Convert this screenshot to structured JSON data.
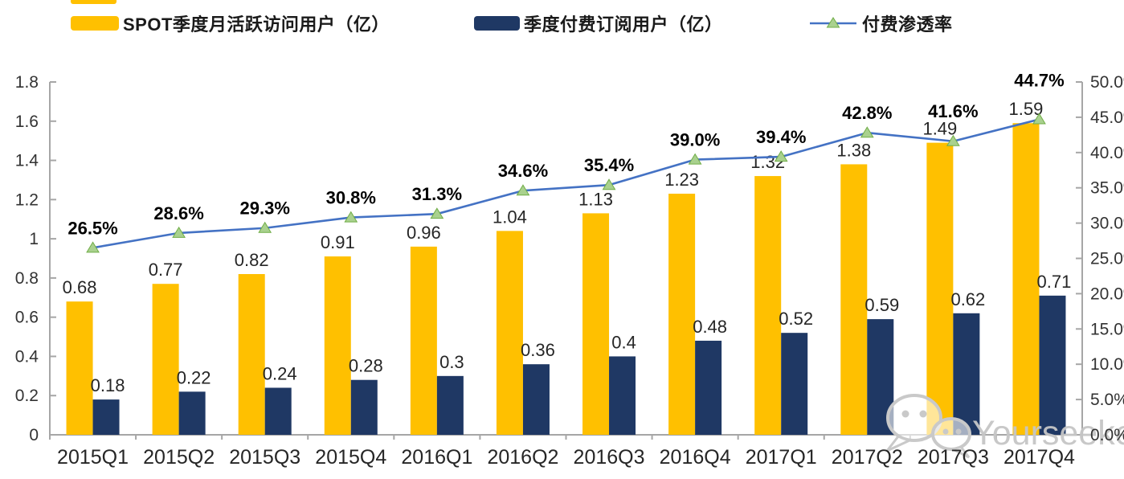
{
  "legend": {
    "items": [
      {
        "label": "SPOT季度月活跃访问用户（亿）",
        "marker": "swatch",
        "color": "#FFC000"
      },
      {
        "label": "季度付费订阅用户（亿）",
        "marker": "swatch",
        "color": "#1F3864"
      },
      {
        "label": "付费渗透率",
        "marker": "line-triangle",
        "color": "#4472C4"
      }
    ]
  },
  "watermark": {
    "text": "Yourseeker",
    "icon": "wechat-bubbles-icon",
    "color": "#c6c6c6"
  },
  "colors": {
    "mau_bar": "#FFC000",
    "subscriber_bar": "#1F3864",
    "penetration_line": "#4472C4",
    "marker_fill": "#A9D18E",
    "marker_stroke": "#70AD47",
    "axis": "#a6a6a6",
    "value_label": "#262626",
    "pct_label": "#000000",
    "watermark": "#c6c6c6"
  },
  "chart_data": {
    "type": "bar",
    "subtype": "grouped-bars-with-line",
    "categories": [
      "2015Q1",
      "2015Q2",
      "2015Q3",
      "2015Q4",
      "2016Q1",
      "2016Q2",
      "2016Q3",
      "2016Q4",
      "2017Q1",
      "2017Q2",
      "2017Q3",
      "2017Q4"
    ],
    "series": [
      {
        "name": "SPOT季度月活跃访问用户（亿）",
        "type": "bar",
        "axis": "left",
        "color": "#FFC000",
        "values": [
          0.68,
          0.77,
          0.82,
          0.91,
          0.96,
          1.04,
          1.13,
          1.23,
          1.32,
          1.38,
          1.49,
          1.59
        ]
      },
      {
        "name": "季度付费订阅用户（亿）",
        "type": "bar",
        "axis": "left",
        "color": "#1F3864",
        "values": [
          0.18,
          0.22,
          0.24,
          0.28,
          0.3,
          0.36,
          0.4,
          0.48,
          0.52,
          0.59,
          0.62,
          0.71
        ]
      },
      {
        "name": "付费渗透率",
        "type": "line",
        "axis": "right",
        "color": "#4472C4",
        "marker": "triangle",
        "values_percent": [
          26.5,
          28.6,
          29.3,
          30.8,
          31.3,
          34.6,
          35.4,
          39.0,
          39.4,
          42.8,
          41.6,
          44.7
        ]
      }
    ],
    "left_axis": {
      "min": 0,
      "max": 1.8,
      "ticks": [
        "1.8",
        "1.6",
        "1.4",
        "1.2",
        "1",
        "0.8",
        "0.6",
        "0.4",
        "0.2",
        "0"
      ]
    },
    "right_axis": {
      "min": 0,
      "max": 50,
      "ticks": [
        "50.0%",
        "45.0%",
        "40.0%",
        "35.0%",
        "30.0%",
        "25.0%",
        "20.0%",
        "15.0%",
        "10.0%",
        "5.0%",
        "0.0%"
      ]
    },
    "grid": false,
    "legend_position": "top",
    "title": ""
  }
}
